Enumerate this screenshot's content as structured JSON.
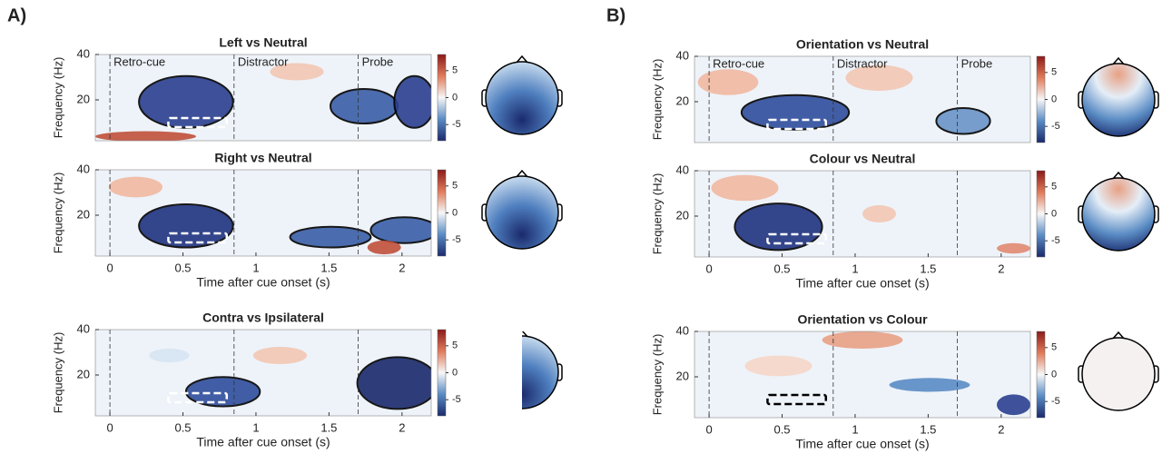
{
  "panel_labels": [
    "A)",
    "B)"
  ],
  "chart_data": [
    {
      "type": "heatmap",
      "title": "Left vs Neutral",
      "ylabel": "Frequency (Hz)",
      "xlim": [
        -0.1,
        2.2
      ],
      "ylim": [
        2,
        40
      ],
      "yticks": [
        20,
        40
      ],
      "events": [
        0,
        0.85,
        1.7
      ],
      "event_labels": [
        "Retro-cue",
        "Distractor",
        "Probe"
      ],
      "clim": [
        -8,
        8
      ],
      "cticks": [
        5,
        0,
        -5
      ],
      "roi": {
        "x": [
          0.4,
          0.8
        ],
        "y": [
          8,
          12
        ]
      }
    },
    {
      "type": "heatmap",
      "title": "Right vs Neutral",
      "ylabel": "Frequency (Hz)",
      "xlabel": "Time after cue onset (s)",
      "xlim": [
        -0.1,
        2.2
      ],
      "ylim": [
        2,
        40
      ],
      "xticks": [
        0,
        0.5,
        1,
        1.5,
        2
      ],
      "yticks": [
        20,
        40
      ],
      "events": [
        0,
        0.85,
        1.7
      ],
      "clim": [
        -8,
        8
      ],
      "cticks": [
        5,
        0,
        -5
      ],
      "roi": {
        "x": [
          0.4,
          0.8
        ],
        "y": [
          8,
          12
        ]
      }
    },
    {
      "type": "heatmap",
      "title": "Contra vs Ipsilateral",
      "ylabel": "Frequency (Hz)",
      "xlabel": "Time after cue onset (s)",
      "xlim": [
        -0.1,
        2.2
      ],
      "ylim": [
        2,
        40
      ],
      "xticks": [
        0,
        0.5,
        1,
        1.5,
        2
      ],
      "yticks": [
        20,
        40
      ],
      "events": [
        0,
        0.85,
        1.7
      ],
      "clim": [
        -8,
        8
      ],
      "cticks": [
        5,
        0,
        -5
      ],
      "roi": {
        "x": [
          0.4,
          0.8
        ],
        "y": [
          8,
          12
        ]
      }
    },
    {
      "type": "heatmap",
      "title": "Orientation vs Neutral",
      "ylabel": "Frequency (Hz)",
      "xlim": [
        -0.1,
        2.2
      ],
      "ylim": [
        2,
        40
      ],
      "yticks": [
        20,
        40
      ],
      "events": [
        0,
        0.85,
        1.7
      ],
      "event_labels": [
        "Retro-cue",
        "Distractor",
        "Probe"
      ],
      "clim": [
        -8,
        8
      ],
      "cticks": [
        5,
        0,
        -5
      ],
      "roi": {
        "x": [
          0.4,
          0.8
        ],
        "y": [
          8,
          12
        ]
      }
    },
    {
      "type": "heatmap",
      "title": "Colour vs Neutral",
      "ylabel": "Frequency (Hz)",
      "xlabel": "Time after cue onset (s)",
      "xlim": [
        -0.1,
        2.2
      ],
      "ylim": [
        2,
        40
      ],
      "xticks": [
        0,
        0.5,
        1,
        1.5,
        2
      ],
      "yticks": [
        20,
        40
      ],
      "events": [
        0,
        0.85,
        1.7
      ],
      "clim": [
        -8,
        8
      ],
      "cticks": [
        5,
        0,
        -5
      ],
      "roi": {
        "x": [
          0.4,
          0.8
        ],
        "y": [
          8,
          12
        ]
      }
    },
    {
      "type": "heatmap",
      "title": "Orientation vs Colour",
      "ylabel": "Frequency (Hz)",
      "xlabel": "Time after cue onset (s)",
      "xlim": [
        -0.1,
        2.2
      ],
      "ylim": [
        2,
        40
      ],
      "xticks": [
        0,
        0.5,
        1,
        1.5,
        2
      ],
      "yticks": [
        20,
        40
      ],
      "events": [
        0,
        0.85,
        1.7
      ],
      "clim": [
        -8,
        8
      ],
      "cticks": [
        5,
        0,
        -5
      ],
      "roi": {
        "x": [
          0.4,
          0.8
        ],
        "y": [
          8,
          12
        ]
      }
    }
  ]
}
